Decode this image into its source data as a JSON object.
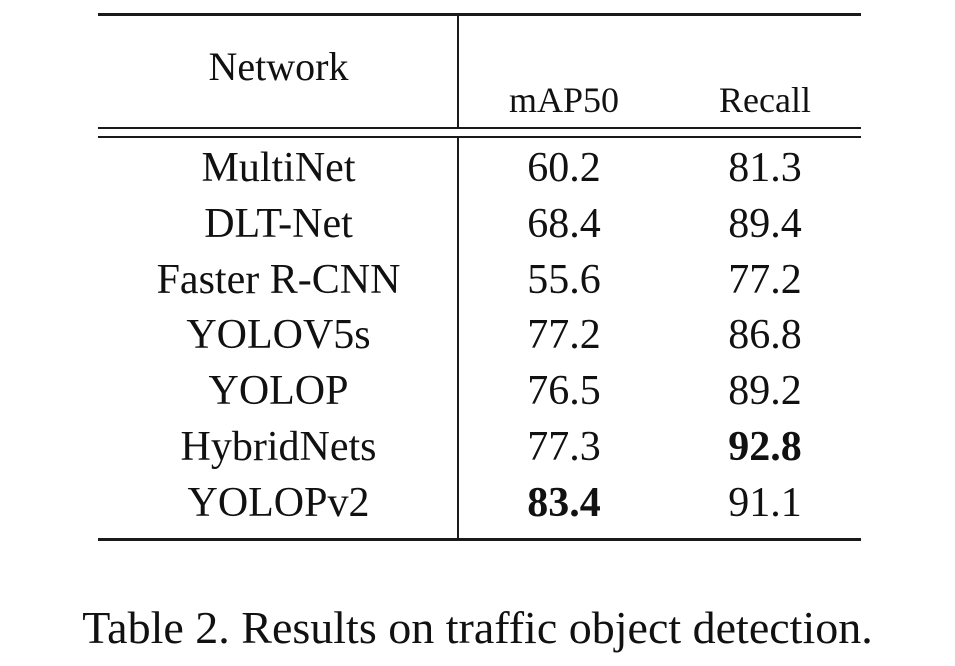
{
  "table": {
    "headers": {
      "network": "Network",
      "map50": "mAP50",
      "recall": "Recall"
    },
    "rows": [
      {
        "network": "MultiNet",
        "map50": "60.2",
        "recall": "81.3",
        "map50_bold": false,
        "recall_bold": false
      },
      {
        "network": "DLT-Net",
        "map50": "68.4",
        "recall": "89.4",
        "map50_bold": false,
        "recall_bold": false
      },
      {
        "network": "Faster R-CNN",
        "map50": "55.6",
        "recall": "77.2",
        "map50_bold": false,
        "recall_bold": false
      },
      {
        "network": "YOLOV5s",
        "map50": "77.2",
        "recall": "86.8",
        "map50_bold": false,
        "recall_bold": false
      },
      {
        "network": "YOLOP",
        "map50": "76.5",
        "recall": "89.2",
        "map50_bold": false,
        "recall_bold": false
      },
      {
        "network": "HybridNets",
        "map50": "77.3",
        "recall": "92.8",
        "map50_bold": false,
        "recall_bold": true
      },
      {
        "network": "YOLOPv2",
        "map50": "83.4",
        "recall": "91.1",
        "map50_bold": true,
        "recall_bold": false
      }
    ]
  },
  "caption": "Table 2. Results on traffic object detection."
}
